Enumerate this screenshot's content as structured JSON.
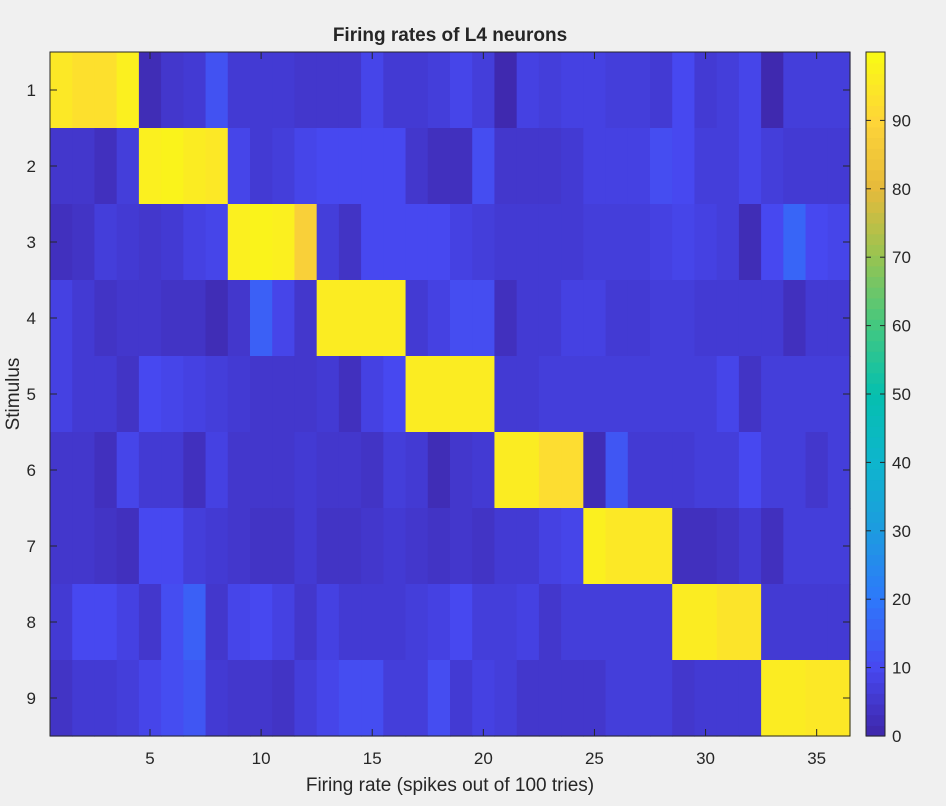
{
  "chart_data": {
    "type": "heatmap",
    "title": "Firing rates of L4 neurons",
    "xlabel": "Firing rate (spikes out of 100 tries)",
    "ylabel": "Stimulus",
    "x_range": [
      0.5,
      36.5
    ],
    "x_ticks": [
      5,
      10,
      15,
      20,
      25,
      30,
      35
    ],
    "y_categories": [
      "1",
      "2",
      "3",
      "4",
      "5",
      "6",
      "7",
      "8",
      "9"
    ],
    "colorbar": {
      "range": [
        0,
        100
      ],
      "ticks": [
        0,
        10,
        20,
        30,
        40,
        50,
        60,
        70,
        80,
        90
      ],
      "colormap": "parula"
    },
    "values": [
      [
        95,
        93,
        93,
        97,
        2,
        5,
        6,
        12,
        6,
        6,
        6,
        5,
        5,
        5,
        9,
        6,
        6,
        7,
        9,
        7,
        1,
        8,
        7,
        8,
        8,
        7,
        7,
        6,
        10,
        6,
        7,
        9,
        1,
        7,
        7,
        7
      ],
      [
        5,
        5,
        3,
        7,
        97,
        98,
        96,
        95,
        9,
        6,
        7,
        9,
        10,
        10,
        10,
        10,
        5,
        3,
        3,
        11,
        5,
        5,
        5,
        6,
        8,
        8,
        8,
        11,
        10,
        7,
        7,
        9,
        7,
        6,
        6,
        6
      ],
      [
        3,
        4,
        7,
        6,
        5,
        6,
        8,
        9,
        97,
        98,
        97,
        88,
        7,
        4,
        10,
        10,
        10,
        10,
        8,
        7,
        6,
        6,
        6,
        6,
        7,
        7,
        7,
        8,
        9,
        8,
        7,
        2,
        10,
        16,
        10,
        9
      ],
      [
        8,
        6,
        4,
        5,
        5,
        4,
        4,
        2,
        5,
        15,
        9,
        5,
        96,
        96,
        96,
        96,
        6,
        8,
        11,
        11,
        3,
        6,
        6,
        8,
        8,
        6,
        6,
        7,
        7,
        6,
        6,
        6,
        6,
        3,
        6,
        6
      ],
      [
        8,
        6,
        6,
        4,
        10,
        9,
        8,
        7,
        6,
        5,
        5,
        5,
        6,
        3,
        8,
        10,
        96,
        96,
        96,
        96,
        6,
        6,
        7,
        7,
        7,
        7,
        7,
        7,
        7,
        7,
        9,
        4,
        7,
        7,
        7,
        7
      ],
      [
        5,
        5,
        3,
        9,
        6,
        6,
        3,
        8,
        5,
        5,
        5,
        6,
        5,
        5,
        4,
        7,
        6,
        2,
        5,
        6,
        96,
        96,
        92,
        92,
        2,
        13,
        6,
        6,
        6,
        7,
        7,
        10,
        7,
        7,
        5,
        7
      ],
      [
        5,
        5,
        4,
        3,
        10,
        10,
        7,
        6,
        5,
        4,
        4,
        6,
        4,
        4,
        5,
        6,
        5,
        4,
        5,
        4,
        6,
        6,
        8,
        9,
        97,
        95,
        95,
        95,
        3,
        3,
        4,
        6,
        3,
        7,
        7,
        7
      ],
      [
        6,
        10,
        10,
        8,
        5,
        11,
        15,
        5,
        9,
        10,
        8,
        5,
        8,
        6,
        6,
        6,
        7,
        8,
        10,
        7,
        7,
        8,
        5,
        7,
        7,
        7,
        7,
        7,
        96,
        96,
        94,
        94,
        6,
        6,
        6,
        6
      ],
      [
        4,
        6,
        6,
        7,
        9,
        11,
        13,
        6,
        5,
        5,
        4,
        7,
        9,
        11,
        11,
        7,
        7,
        11,
        6,
        8,
        7,
        5,
        5,
        5,
        5,
        7,
        7,
        7,
        5,
        6,
        6,
        6,
        96,
        96,
        95,
        95
      ]
    ]
  }
}
